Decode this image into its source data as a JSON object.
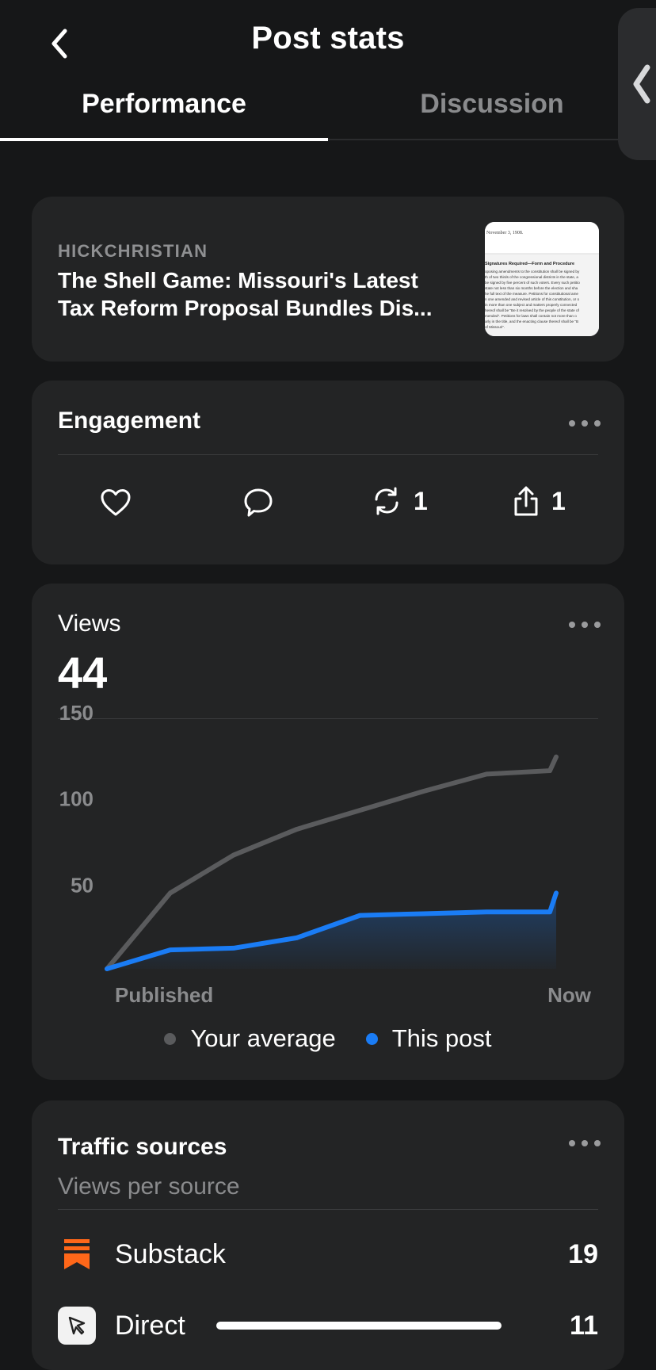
{
  "header": {
    "title": "Post stats",
    "tabs": [
      {
        "label": "Performance",
        "active": true
      },
      {
        "label": "Discussion",
        "active": false
      }
    ]
  },
  "post": {
    "author": "HICKCHRISTIAN",
    "title_line1": "The Shell Game: Missouri's Latest",
    "title_line2": "Tax Reform Proposal Bundles Dis...",
    "thumbnail": {
      "date": "November 3, 1908.",
      "heading": "Signatures Required—Form and Procedure",
      "lines": [
        "oposing amendments to the constitution shall be signed by",
        "th of two thirds of the congressional districts in the state, a",
        "be signed by five percent of such voters. Every such petitio",
        "state not less than six months before the election and sha",
        "he full text of the measure. Petitions for constitutional ame",
        "n one amended and revised article of this constitution, or o",
        "in more than one subject and matters properly connected",
        "hereof shall be \"Be it resolved by the people of the state of",
        "mended\". Petitions for laws shall contain not more than o",
        "arly in the title, and the enacting clause thereof shall be \"B",
        "of Missouri\"."
      ]
    }
  },
  "engagement": {
    "title": "Engagement",
    "likes": "",
    "comments": "",
    "restacks": "1",
    "shares": "1"
  },
  "views": {
    "label": "Views",
    "count": "44"
  },
  "chart_data": {
    "type": "line",
    "x_start_label": "Published",
    "x_end_label": "Now",
    "y_ticks": [
      50,
      100,
      150
    ],
    "ylim": [
      0,
      150
    ],
    "x": [
      0,
      1,
      2,
      3,
      4,
      5,
      6,
      7,
      7.1
    ],
    "series": [
      {
        "name": "Your average",
        "color": "#5a5b5d",
        "values": [
          0,
          44,
          66,
          81,
          92,
          103,
          113,
          115,
          123
        ]
      },
      {
        "name": "This post",
        "color": "#1a7cf5",
        "values": [
          0,
          11,
          12,
          18,
          31,
          32,
          33,
          33,
          44
        ]
      }
    ],
    "grid": false,
    "legend": "bottom-center"
  },
  "traffic": {
    "title": "Traffic sources",
    "subtitle": "Views per source",
    "sources": [
      {
        "name": "Substack",
        "count": "19"
      },
      {
        "name": "Direct",
        "count": "11"
      }
    ]
  },
  "colors": {
    "background": "#161718",
    "card": "#232425",
    "accent_blue": "#1a7cf5",
    "substack_orange": "#ff6719"
  }
}
